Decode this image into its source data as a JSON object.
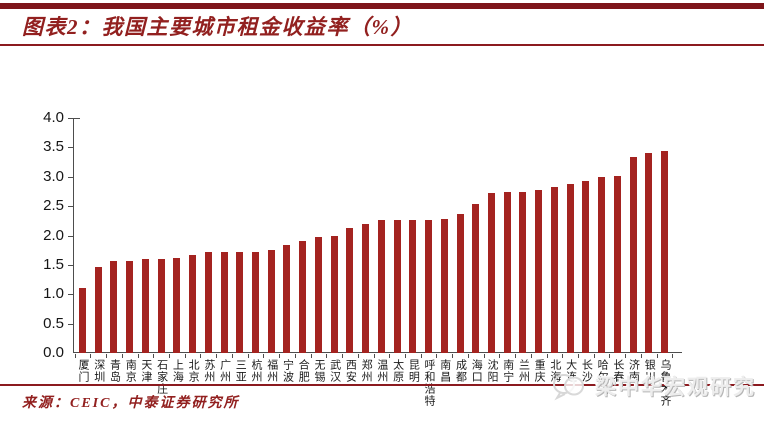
{
  "header": {
    "title": "图表2：我国主要城市租金收益率（%）"
  },
  "footer": {
    "source": "来源：CEIC，中泰证券研究所"
  },
  "watermark": {
    "icon": "speech-bubble-logo-icon",
    "text": "梁中华宏观研究"
  },
  "colors": {
    "accent_dark_red": "#8b1a1f",
    "bar_red": "#a42320",
    "axis_gray": "#4d4d4d",
    "watermark_gray": "#ededed"
  },
  "chart_data": {
    "type": "bar",
    "title": "我国主要城市租金收益率（%）",
    "xlabel": "",
    "ylabel": "",
    "ylim": [
      0,
      4.0
    ],
    "ytick_labels": [
      "0.0",
      "0.5",
      "1.0",
      "1.5",
      "2.0",
      "2.5",
      "3.0",
      "3.5",
      "4.0"
    ],
    "grid": false,
    "legend": "none",
    "bar_color": "#a42320",
    "categories": [
      "厦门",
      "深圳",
      "青岛",
      "南京",
      "天津",
      "石家庄",
      "上海",
      "北京",
      "苏州",
      "广州",
      "三亚",
      "杭州",
      "福州",
      "宁波",
      "合肥",
      "无锡",
      "武汉",
      "西安",
      "郑州",
      "温州",
      "太原",
      "昆明",
      "呼和浩特",
      "南昌",
      "成都",
      "海口",
      "沈阳",
      "南宁",
      "兰州",
      "重庆",
      "北海",
      "大连",
      "长沙",
      "哈尔滨",
      "长春",
      "济南",
      "银川",
      "乌鲁木齐"
    ],
    "values": [
      1.1,
      1.46,
      1.57,
      1.57,
      1.6,
      1.6,
      1.62,
      1.66,
      1.72,
      1.72,
      1.72,
      1.72,
      1.75,
      1.83,
      1.9,
      1.97,
      2.0,
      2.12,
      2.2,
      2.27,
      2.27,
      2.27,
      2.27,
      2.28,
      2.37,
      2.53,
      2.72,
      2.74,
      2.74,
      2.77,
      2.82,
      2.88,
      2.92,
      3.0,
      3.02,
      3.33,
      3.4,
      3.43
    ]
  }
}
